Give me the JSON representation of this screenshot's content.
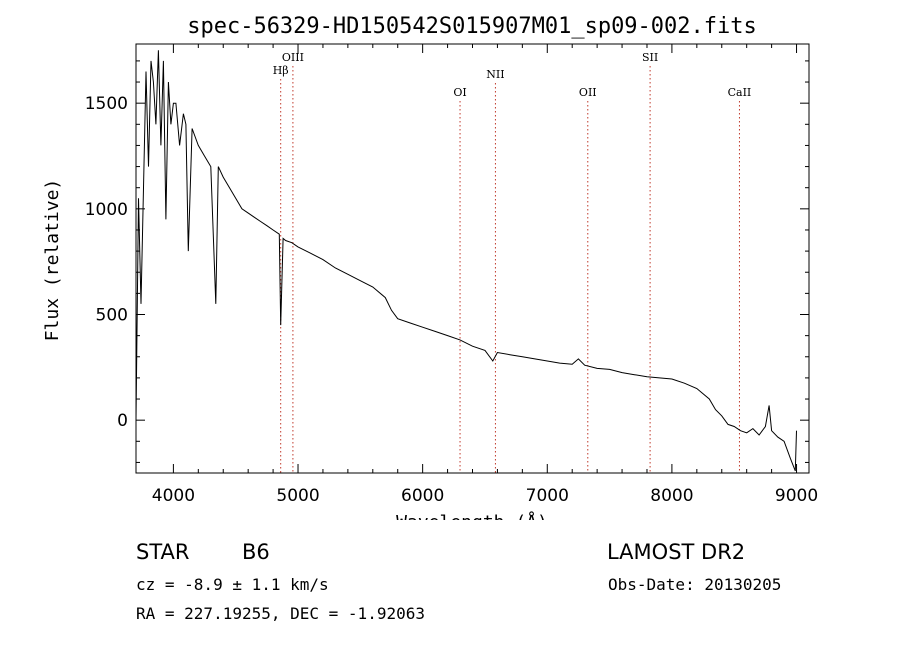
{
  "chart_data": {
    "type": "line",
    "title": "spec-56329-HD150542S015907M01_sp09-002.fits",
    "xlabel": "Wavelength (Å)",
    "ylabel": "Flux (relative)",
    "xlim": [
      3700,
      9100
    ],
    "ylim": [
      -250,
      1780
    ],
    "xticks": [
      4000,
      5000,
      6000,
      7000,
      8000,
      9000
    ],
    "yticks": [
      0,
      500,
      1000,
      1500
    ],
    "grid": false,
    "line_color": "#000000",
    "marker_color": "#c0392b",
    "spectral_lines": [
      {
        "name": "Hβ",
        "x": 4861
      },
      {
        "name": "OIII",
        "x": 4959
      },
      {
        "name": "OI",
        "x": 6300
      },
      {
        "name": "NII",
        "x": 6584
      },
      {
        "name": "OII",
        "x": 7325
      },
      {
        "name": "SII",
        "x": 7825
      },
      {
        "name": "CaII",
        "x": 8542
      }
    ],
    "series": [
      {
        "x": [
          3700,
          3720,
          3740,
          3760,
          3780,
          3800,
          3820,
          3840,
          3860,
          3880,
          3900,
          3920,
          3940,
          3960,
          3980,
          4000,
          4020,
          4050,
          4080,
          4100,
          4120,
          4150,
          4200,
          4250,
          4300,
          4340,
          4360,
          4400,
          4450,
          4500,
          4550,
          4600,
          4650,
          4700,
          4750,
          4800,
          4850,
          4861,
          4880,
          4900,
          4950,
          5000,
          5100,
          5200,
          5300,
          5400,
          5500,
          5600,
          5700,
          5750,
          5800,
          5900,
          6000,
          6100,
          6200,
          6300,
          6400,
          6500,
          6563,
          6600,
          6700,
          6800,
          6900,
          7000,
          7100,
          7200,
          7250,
          7300,
          7400,
          7500,
          7600,
          7700,
          7800,
          7900,
          8000,
          8100,
          8200,
          8300,
          8350,
          8400,
          8450,
          8500,
          8550,
          8600,
          8650,
          8700,
          8750,
          8780,
          8800,
          8850,
          8900,
          8950,
          8990,
          9000
        ],
        "y": [
          0,
          1050,
          550,
          1100,
          1650,
          1200,
          1700,
          1600,
          1400,
          1750,
          1300,
          1700,
          950,
          1600,
          1400,
          1500,
          1500,
          1300,
          1450,
          1400,
          800,
          1380,
          1300,
          1250,
          1200,
          550,
          1200,
          1150,
          1100,
          1050,
          1000,
          980,
          960,
          940,
          920,
          900,
          880,
          450,
          860,
          850,
          840,
          820,
          790,
          760,
          720,
          690,
          660,
          630,
          580,
          520,
          480,
          460,
          440,
          420,
          400,
          380,
          350,
          330,
          280,
          320,
          310,
          300,
          290,
          280,
          270,
          265,
          290,
          260,
          245,
          240,
          225,
          215,
          205,
          200,
          195,
          175,
          150,
          100,
          50,
          20,
          -20,
          -30,
          -50,
          -60,
          -40,
          -70,
          -30,
          70,
          -50,
          -80,
          -100,
          -180,
          -240,
          -50
        ]
      }
    ]
  },
  "info": {
    "object_type": "STAR",
    "subclass": "B6",
    "survey": "LAMOST DR2",
    "cz": "cz = -8.9 ± 1.1 km/s",
    "obs_date": "Obs-Date: 20130205",
    "coords": "RA = 227.19255, DEC =  -1.92063"
  }
}
